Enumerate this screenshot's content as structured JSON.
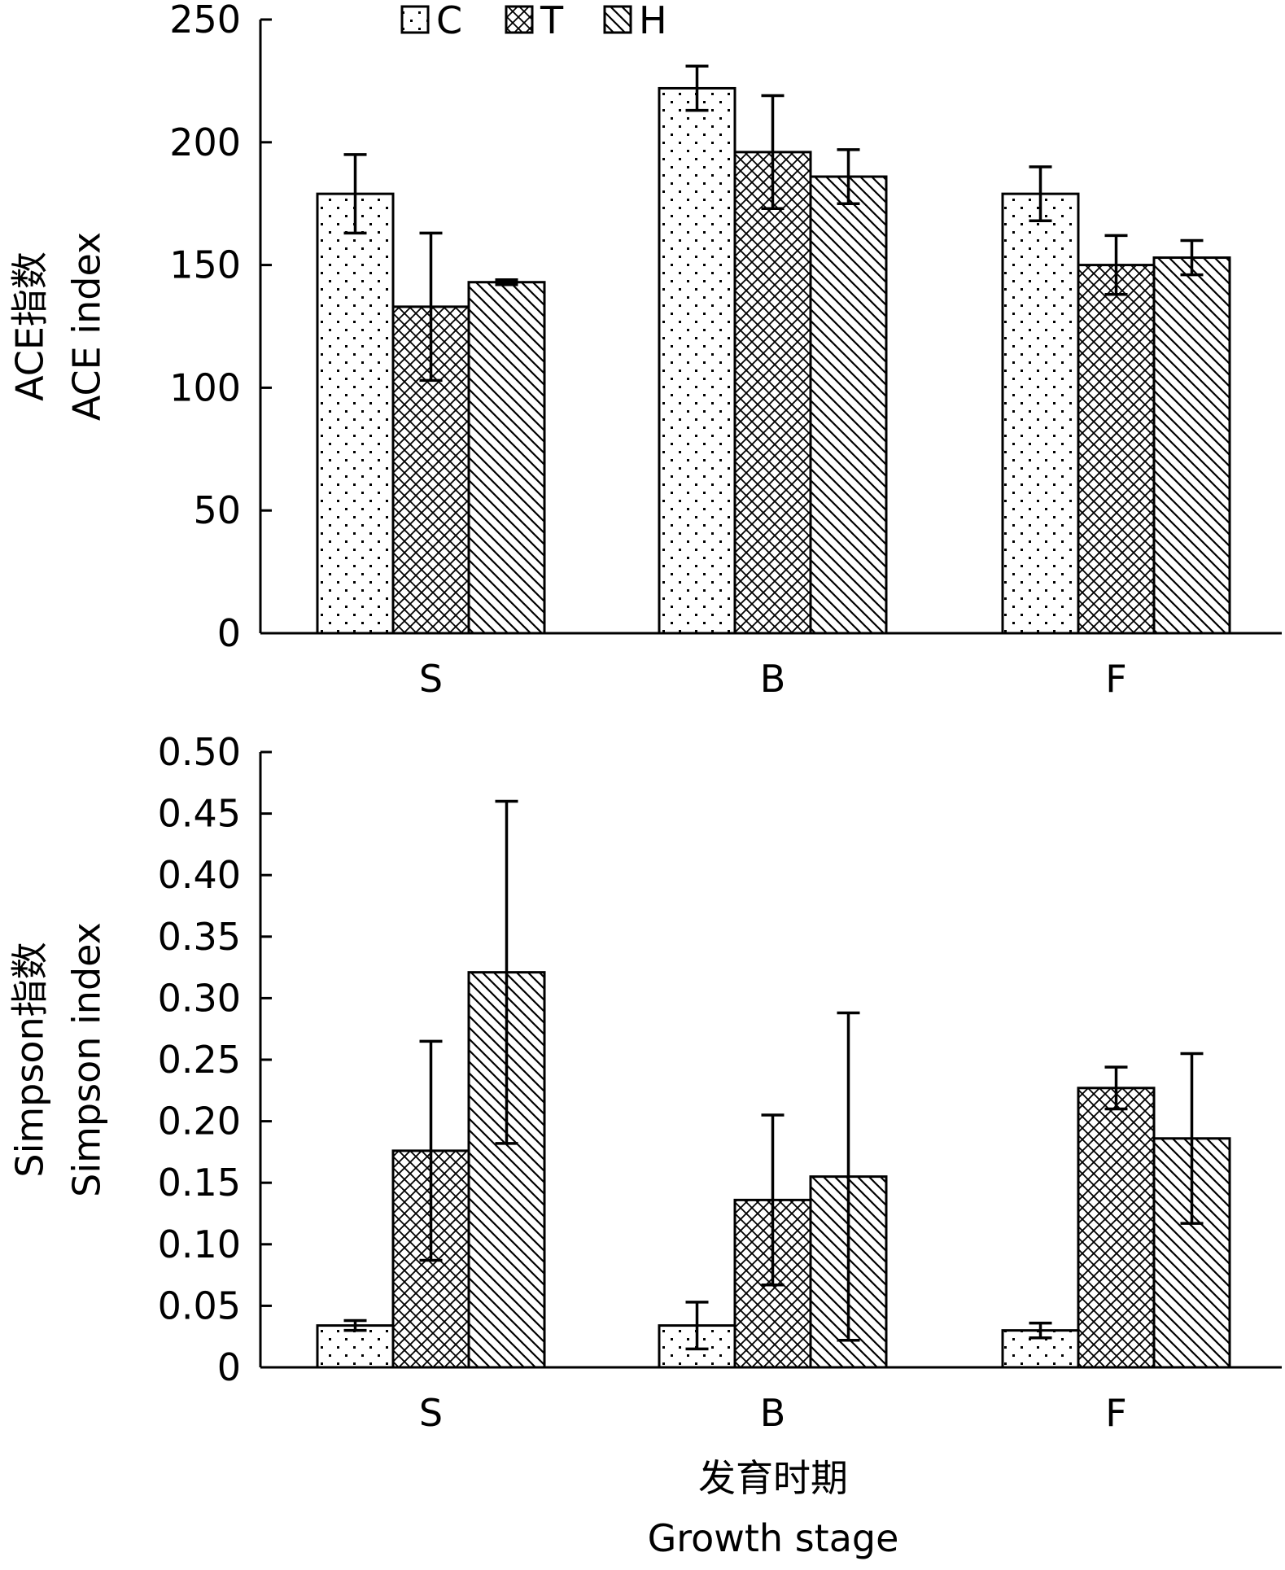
{
  "chart_data": [
    {
      "type": "bar",
      "categories": [
        "S",
        "B",
        "F"
      ],
      "series": [
        {
          "name": "C",
          "values": [
            179,
            222,
            179
          ],
          "errors": [
            16,
            9,
            11
          ],
          "pattern": "dots"
        },
        {
          "name": "T",
          "values": [
            133,
            196,
            150
          ],
          "errors": [
            30,
            23,
            12
          ],
          "pattern": "crosshatch"
        },
        {
          "name": "H",
          "values": [
            143,
            186,
            153
          ],
          "errors": [
            1,
            11,
            7
          ],
          "pattern": "diagonal"
        }
      ],
      "ylabel": [
        "ACE指数",
        "ACE index"
      ],
      "ylim": [
        0,
        250
      ],
      "yticks": [
        "0",
        "50",
        "100",
        "150",
        "200",
        "250"
      ],
      "legend": "top"
    },
    {
      "type": "bar",
      "categories": [
        "S",
        "B",
        "F"
      ],
      "series": [
        {
          "name": "C",
          "values": [
            0.034,
            0.034,
            0.03
          ],
          "errors": [
            0.004,
            0.019,
            0.006
          ],
          "pattern": "dots"
        },
        {
          "name": "T",
          "values": [
            0.176,
            0.136,
            0.227
          ],
          "errors": [
            0.089,
            0.069,
            0.017
          ],
          "pattern": "crosshatch"
        },
        {
          "name": "H",
          "values": [
            0.321,
            0.155,
            0.186
          ],
          "errors": [
            0.139,
            0.133,
            0.069
          ],
          "pattern": "diagonal"
        }
      ],
      "ylabel": [
        "Simpson指数",
        "Simpson index"
      ],
      "ylim": [
        0,
        0.5
      ],
      "yticks": [
        "0",
        "0.05",
        "0.10",
        "0.15",
        "0.20",
        "0.25",
        "0.30",
        "0.35",
        "0.40",
        "0.45",
        "0.50"
      ]
    }
  ],
  "xlabel": [
    "发育时期",
    "Growth stage"
  ]
}
